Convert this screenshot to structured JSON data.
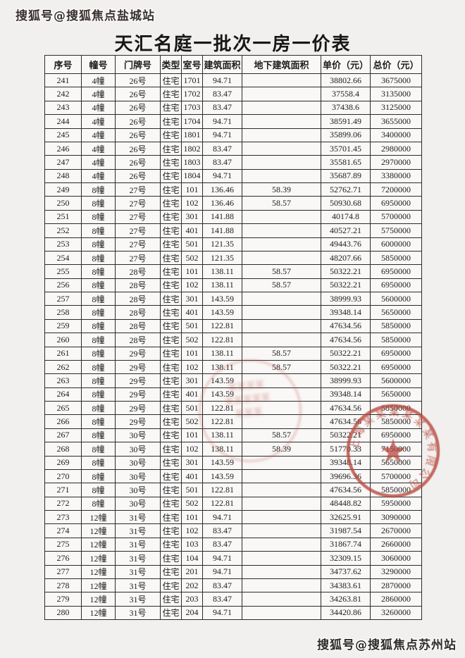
{
  "watermarks": {
    "top_left": "搜狐号@搜狐焦点盐城站",
    "bottom_right": "搜狐号@搜狐焦点苏州站"
  },
  "title": "天汇名庭一批次一房一价表",
  "table": {
    "headers": [
      "序号",
      "幢号",
      "门牌号",
      "类型",
      "室号",
      "建筑面积",
      "地下建筑面积",
      "单价（元）",
      "总价（元）"
    ],
    "rows": [
      [
        "241",
        "4幢",
        "26号",
        "住宅",
        "1701",
        "94.71",
        "",
        "38802.66",
        "3675000"
      ],
      [
        "242",
        "4幢",
        "26号",
        "住宅",
        "1702",
        "83.47",
        "",
        "37558.4",
        "3135000"
      ],
      [
        "243",
        "4幢",
        "26号",
        "住宅",
        "1703",
        "83.47",
        "",
        "37438.6",
        "3125000"
      ],
      [
        "244",
        "4幢",
        "26号",
        "住宅",
        "1704",
        "94.71",
        "",
        "38591.49",
        "3655000"
      ],
      [
        "245",
        "4幢",
        "26号",
        "住宅",
        "1801",
        "94.71",
        "",
        "35899.06",
        "3400000"
      ],
      [
        "246",
        "4幢",
        "26号",
        "住宅",
        "1802",
        "83.47",
        "",
        "35701.45",
        "2980000"
      ],
      [
        "247",
        "4幢",
        "26号",
        "住宅",
        "1803",
        "83.47",
        "",
        "35581.65",
        "2970000"
      ],
      [
        "248",
        "4幢",
        "26号",
        "住宅",
        "1804",
        "94.71",
        "",
        "35687.89",
        "3380000"
      ],
      [
        "249",
        "8幢",
        "27号",
        "住宅",
        "101",
        "136.46",
        "58.39",
        "52762.71",
        "7200000"
      ],
      [
        "250",
        "8幢",
        "27号",
        "住宅",
        "102",
        "136.46",
        "58.57",
        "50930.68",
        "6950000"
      ],
      [
        "251",
        "8幢",
        "27号",
        "住宅",
        "301",
        "141.88",
        "",
        "40174.8",
        "5700000"
      ],
      [
        "252",
        "8幢",
        "27号",
        "住宅",
        "401",
        "141.88",
        "",
        "40527.21",
        "5750000"
      ],
      [
        "253",
        "8幢",
        "27号",
        "住宅",
        "501",
        "121.35",
        "",
        "49443.76",
        "6000000"
      ],
      [
        "254",
        "8幢",
        "27号",
        "住宅",
        "502",
        "121.35",
        "",
        "48207.66",
        "5850000"
      ],
      [
        "255",
        "8幢",
        "28号",
        "住宅",
        "101",
        "138.11",
        "58.57",
        "50322.21",
        "6950000"
      ],
      [
        "256",
        "8幢",
        "28号",
        "住宅",
        "102",
        "138.11",
        "58.57",
        "50322.21",
        "6950000"
      ],
      [
        "257",
        "8幢",
        "28号",
        "住宅",
        "301",
        "143.59",
        "",
        "38999.93",
        "5600000"
      ],
      [
        "258",
        "8幢",
        "28号",
        "住宅",
        "401",
        "143.59",
        "",
        "39348.14",
        "5650000"
      ],
      [
        "259",
        "8幢",
        "28号",
        "住宅",
        "501",
        "122.81",
        "",
        "47634.56",
        "5850000"
      ],
      [
        "260",
        "8幢",
        "28号",
        "住宅",
        "502",
        "122.81",
        "",
        "47634.56",
        "5850000"
      ],
      [
        "261",
        "8幢",
        "29号",
        "住宅",
        "101",
        "138.11",
        "58.57",
        "50322.21",
        "6950000"
      ],
      [
        "262",
        "8幢",
        "29号",
        "住宅",
        "102",
        "138.11",
        "58.57",
        "50322.21",
        "6950000"
      ],
      [
        "263",
        "8幢",
        "29号",
        "住宅",
        "301",
        "143.59",
        "",
        "38999.93",
        "5600000"
      ],
      [
        "264",
        "8幢",
        "29号",
        "住宅",
        "401",
        "143.59",
        "",
        "39348.14",
        "5650000"
      ],
      [
        "265",
        "8幢",
        "29号",
        "住宅",
        "501",
        "122.81",
        "",
        "47634.56",
        "5850000"
      ],
      [
        "266",
        "8幢",
        "29号",
        "住宅",
        "502",
        "122.81",
        "",
        "47634.56",
        "5850000"
      ],
      [
        "267",
        "8幢",
        "30号",
        "住宅",
        "101",
        "138.11",
        "58.57",
        "50322.21",
        "6950000"
      ],
      [
        "268",
        "8幢",
        "30号",
        "住宅",
        "102",
        "138.11",
        "58.39",
        "51770.33",
        "7150000"
      ],
      [
        "269",
        "8幢",
        "30号",
        "住宅",
        "301",
        "143.59",
        "",
        "39348.14",
        "5650000"
      ],
      [
        "270",
        "8幢",
        "30号",
        "住宅",
        "401",
        "143.59",
        "",
        "39696.36",
        "5700000"
      ],
      [
        "271",
        "8幢",
        "30号",
        "住宅",
        "501",
        "122.81",
        "",
        "47634.56",
        "5850000"
      ],
      [
        "272",
        "8幢",
        "30号",
        "住宅",
        "502",
        "122.81",
        "",
        "48448.82",
        "5950000"
      ],
      [
        "273",
        "12幢",
        "31号",
        "住宅",
        "101",
        "94.71",
        "",
        "32625.91",
        "3090000"
      ],
      [
        "274",
        "12幢",
        "31号",
        "住宅",
        "102",
        "83.47",
        "",
        "31987.54",
        "2670000"
      ],
      [
        "275",
        "12幢",
        "31号",
        "住宅",
        "103",
        "83.47",
        "",
        "31867.74",
        "2660000"
      ],
      [
        "276",
        "12幢",
        "31号",
        "住宅",
        "104",
        "94.71",
        "",
        "32309.15",
        "3060000"
      ],
      [
        "277",
        "12幢",
        "31号",
        "住宅",
        "201",
        "94.71",
        "",
        "34737.62",
        "3290000"
      ],
      [
        "278",
        "12幢",
        "31号",
        "住宅",
        "202",
        "83.47",
        "",
        "34383.61",
        "2870000"
      ],
      [
        "279",
        "12幢",
        "31号",
        "住宅",
        "203",
        "83.47",
        "",
        "34263.81",
        "2860000"
      ],
      [
        "280",
        "12幢",
        "31号",
        "住宅",
        "204",
        "94.71",
        "",
        "34420.86",
        "3260000"
      ]
    ]
  },
  "stamps": {
    "main": {
      "color": "#b8473c",
      "star": "★",
      "ring_marks": "上海某某某某某某有限公司"
    },
    "faint": {
      "line1": "某某某某",
      "line2": "某某某某某",
      "line3": "某某某"
    }
  }
}
